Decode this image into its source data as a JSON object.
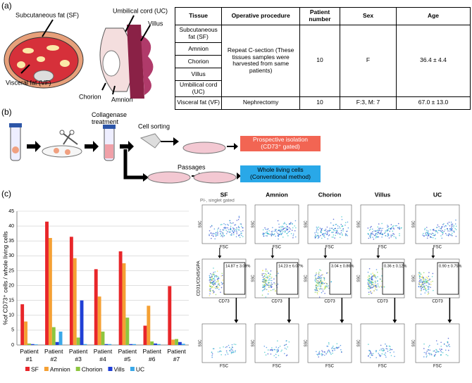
{
  "panels": {
    "a": "(a)",
    "b": "(b)",
    "c": "(c)"
  },
  "illustration": {
    "sf": "Subcutaneous fat (SF)",
    "vf": "Visceral fat (VF)",
    "uc": "Umbilical cord (UC)",
    "villus": "Villus",
    "chorion": "Chorion",
    "amnion": "Amnion"
  },
  "table": {
    "header": [
      "Tissue",
      "Operative procedure",
      "Patient number",
      "Sex",
      "Age"
    ],
    "tissues": [
      "Subcutaneous fat (SF)",
      "Amnion",
      "Chorion",
      "Villus",
      "Umbilical cord (UC)"
    ],
    "procedure": "Repeat C-section (These tissues samples were harvested from same patients)",
    "number": "10",
    "sex": "F",
    "age": "36.4 ± 4.4",
    "vf": [
      "Visceral fat (VF)",
      "Nephrectomy",
      "10",
      "F:3, M: 7",
      "67.0 ± 13.0"
    ]
  },
  "workflow": {
    "collagenase": [
      "Collagenase",
      "treatment"
    ],
    "sorting": "Cell sorting",
    "prospective": [
      "Prospective isolation",
      "(CD73⁺ gated)"
    ],
    "passages": "Passages",
    "whole": [
      "Whole living cells",
      "(Conventional method)"
    ]
  },
  "chart_data": {
    "type": "bar",
    "y_label": "%of CD73⁺ cells / whole living cells",
    "categories": [
      "Patient #1",
      "Patient #2",
      "Patient #3",
      "Patient #4",
      "Patient #5",
      "Patient #6",
      "Patient #7"
    ],
    "series": [
      {
        "name": "SF",
        "color": "#e8262a",
        "values": [
          13.7,
          41.5,
          36.4,
          25.5,
          31.5,
          6.5,
          19.8
        ]
      },
      {
        "name": "Amnion",
        "color": "#f5a033",
        "values": [
          7.9,
          36,
          29.2,
          16.3,
          27.5,
          13.2,
          1.8
        ]
      },
      {
        "name": "Chorion",
        "color": "#8dc63f",
        "values": [
          0.5,
          6,
          2.5,
          4.5,
          9.2,
          1.2,
          2
        ]
      },
      {
        "name": "Vills",
        "color": "#1f3fd6",
        "values": [
          0.3,
          1,
          15,
          0.3,
          0.3,
          0.5,
          1
        ]
      },
      {
        "name": "UC",
        "color": "#3aa8e8",
        "values": [
          0.2,
          4.5,
          0.3,
          0.3,
          0.3,
          0.3,
          0.4
        ]
      }
    ],
    "ylim": [
      0,
      45
    ],
    "yticks": [
      0,
      5,
      10,
      15,
      20,
      25,
      30,
      35,
      40,
      45
    ]
  },
  "flow": {
    "gate": "PI-, singlet gated",
    "columns": [
      "SF",
      "Amnion",
      "Chorion",
      "Villus",
      "UC"
    ],
    "ssc": "SSC",
    "fsc": "FSC",
    "cd": "CD31/CD45/GPA",
    "cd73": "CD73",
    "percents": [
      "14.87 ± 3.09%",
      "14.23 ± 6.07%",
      "3.04 ± 0.86%",
      "0.36 ± 0.12%",
      "0.90 ± 0.75%"
    ]
  }
}
